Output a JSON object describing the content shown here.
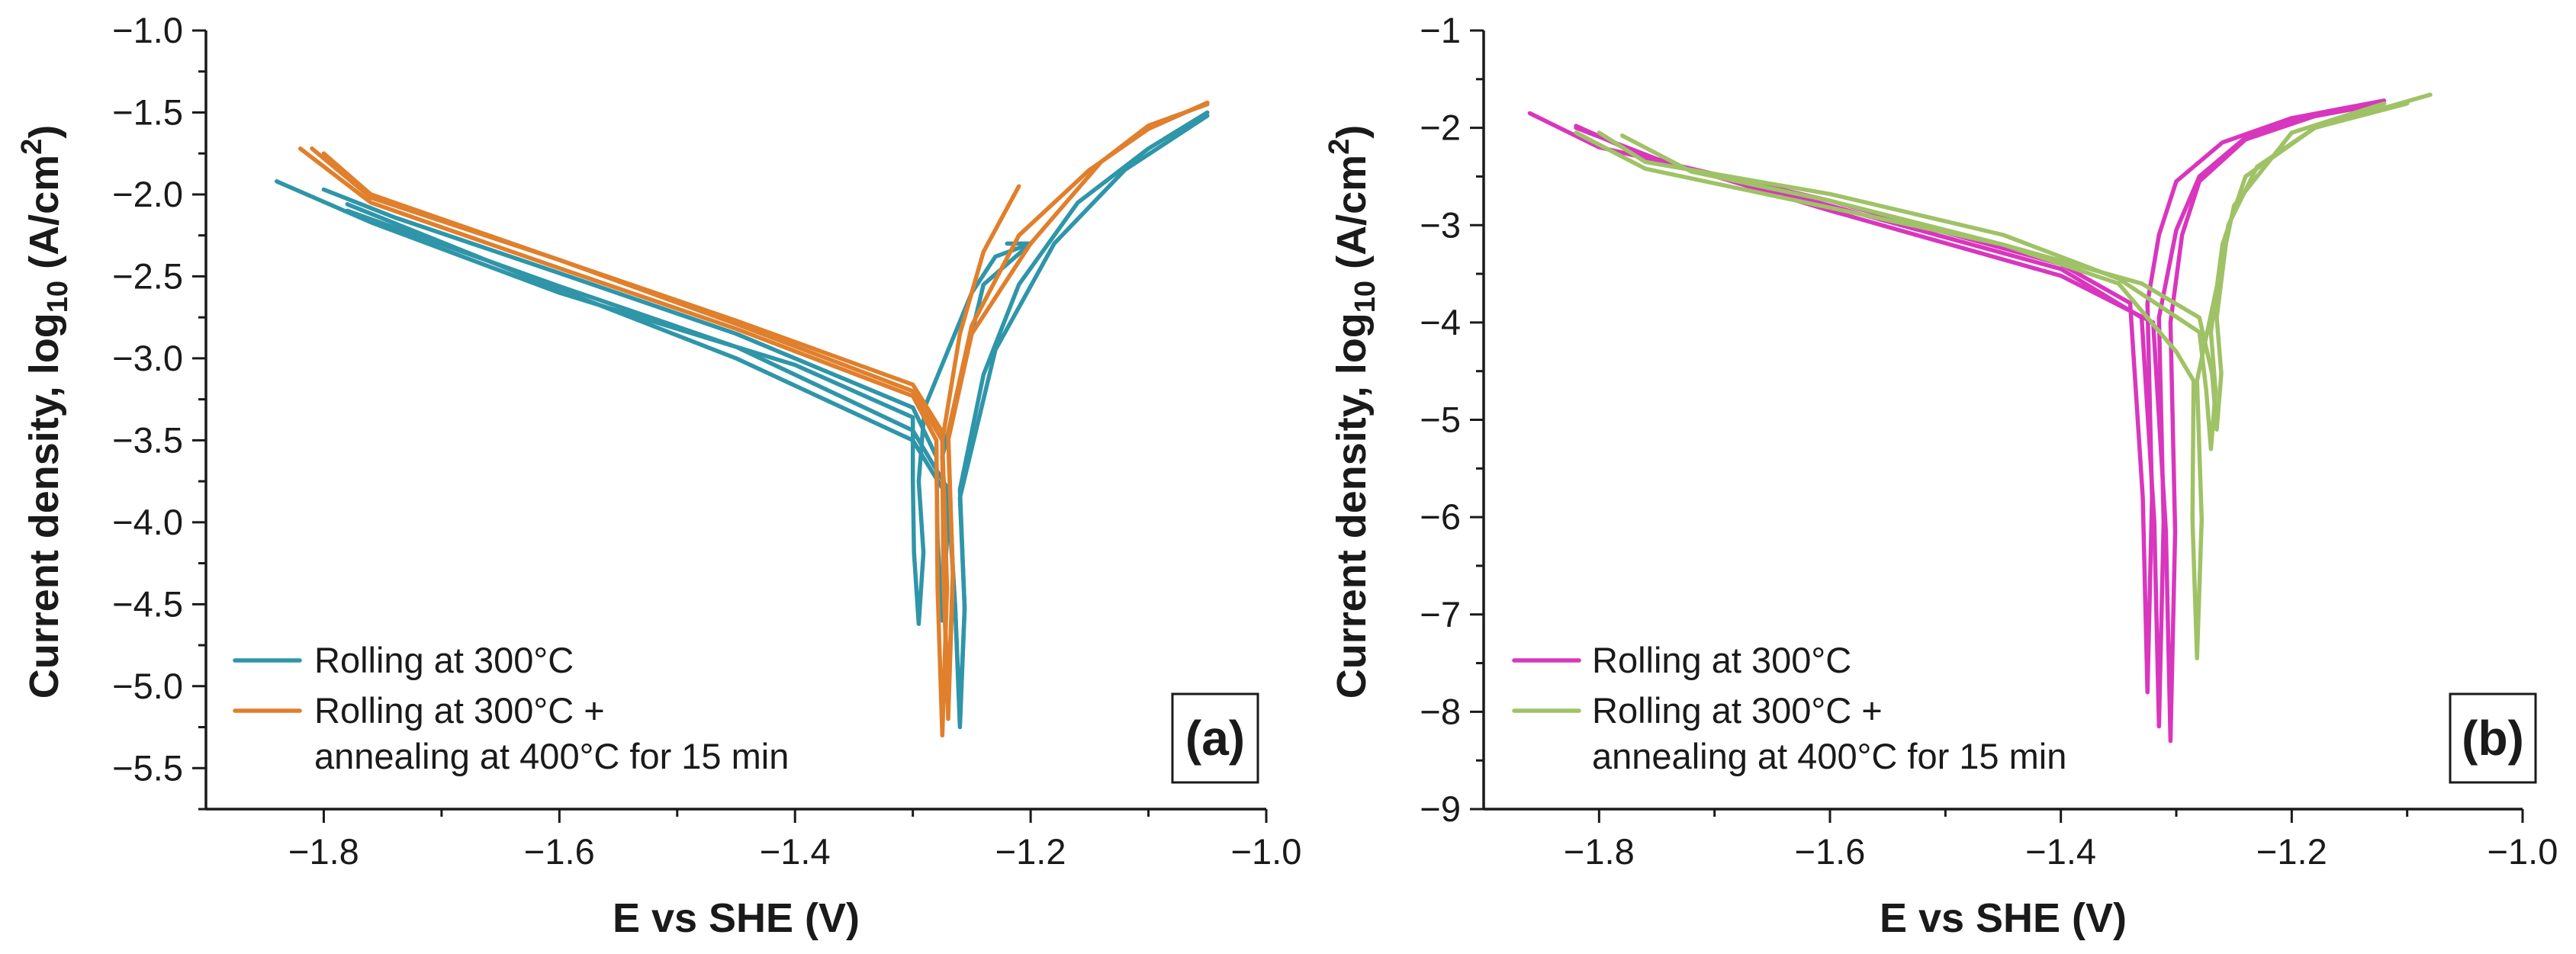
{
  "chart_data": [
    {
      "type": "line",
      "panel_label": "(a)",
      "xlabel": "E vs SHE (V)",
      "ylabel_parts": [
        "Current density, log",
        "10",
        " (A/cm",
        "2",
        ")"
      ],
      "xlim": [
        -1.9,
        -1.0
      ],
      "ylim": [
        -5.75,
        -1.0
      ],
      "xticks": [
        -1.8,
        -1.6,
        -1.4,
        -1.2,
        -1.0
      ],
      "xtick_labels": [
        "−1.8",
        "−1.6",
        "−1.4",
        "−1.2",
        "−1.0"
      ],
      "yticks": [
        -1.0,
        -1.5,
        -2.0,
        -2.5,
        -3.0,
        -3.5,
        -4.0,
        -4.5,
        -5.0,
        -5.5
      ],
      "ytick_labels": [
        "−1.0",
        "−1.5",
        "−2.0",
        "−2.5",
        "−3.0",
        "−3.5",
        "−4.0",
        "−4.5",
        "−5.0",
        "−5.5"
      ],
      "legend_position": "bottom-left",
      "legend": [
        {
          "lines": [
            "Rolling at 300°C"
          ],
          "color": "#2f95a9"
        },
        {
          "lines": [
            "Rolling at 300°C +",
            "annealing at 400°C for 15 min"
          ],
          "color": "#e07f2c"
        }
      ],
      "series": [
        {
          "name": "Rolling at 300°C",
          "color": "#2f95a9",
          "curves": [
            {
              "cathodic": [
                [
                  -1.84,
                  -1.92
                ],
                [
                  -1.76,
                  -2.17
                ],
                [
                  -1.6,
                  -2.6
                ],
                [
                  -1.4,
                  -3.04
                ],
                [
                  -1.3,
                  -3.36
                ],
                [
                  -1.3,
                  -3.75
                ]
              ],
              "ecorr": -1.295,
              "min": -4.62,
              "anodic": [
                [
                  -1.295,
                  -3.75
                ],
                [
                  -1.29,
                  -3.3
                ],
                [
                  -1.27,
                  -2.95
                ],
                [
                  -1.25,
                  -2.6
                ],
                [
                  -1.23,
                  -2.38
                ],
                [
                  -1.2,
                  -2.3
                ]
              ]
            },
            {
              "cathodic": [
                [
                  -1.8,
                  -1.97
                ],
                [
                  -1.74,
                  -2.14
                ],
                [
                  -1.6,
                  -2.48
                ],
                [
                  -1.45,
                  -2.85
                ],
                [
                  -1.3,
                  -3.3
                ],
                [
                  -1.28,
                  -3.6
                ]
              ],
              "ecorr": -1.275,
              "min": -4.6,
              "anodic": [
                [
                  -1.275,
                  -3.6
                ],
                [
                  -1.26,
                  -3.15
                ],
                [
                  -1.24,
                  -2.55
                ],
                [
                  -1.2,
                  -2.3
                ],
                [
                  -1.22,
                  -2.3
                ]
              ]
            },
            {
              "cathodic": [
                [
                  -1.78,
                  -2.1
                ],
                [
                  -1.6,
                  -2.56
                ],
                [
                  -1.45,
                  -2.93
                ],
                [
                  -1.3,
                  -3.44
                ],
                [
                  -1.27,
                  -3.8
                ]
              ],
              "ecorr": -1.26,
              "min": -5.25,
              "anodic": [
                [
                  -1.26,
                  -3.8
                ],
                [
                  -1.24,
                  -3.1
                ],
                [
                  -1.21,
                  -2.55
                ],
                [
                  -1.16,
                  -2.05
                ],
                [
                  -1.1,
                  -1.72
                ],
                [
                  -1.05,
                  -1.5
                ]
              ]
            },
            {
              "cathodic": [
                [
                  -1.78,
                  -2.06
                ],
                [
                  -1.6,
                  -2.58
                ],
                [
                  -1.45,
                  -3.0
                ],
                [
                  -1.3,
                  -3.5
                ],
                [
                  -1.27,
                  -3.85
                ]
              ],
              "ecorr": -1.26,
              "min": -5.2,
              "anodic": [
                [
                  -1.26,
                  -3.85
                ],
                [
                  -1.23,
                  -2.95
                ],
                [
                  -1.18,
                  -2.3
                ],
                [
                  -1.12,
                  -1.85
                ],
                [
                  -1.05,
                  -1.52
                ]
              ]
            }
          ]
        },
        {
          "name": "Rolling at 300°C +",
          "color": "#e07f2c",
          "curves": [
            {
              "cathodic": [
                [
                  -1.82,
                  -1.72
                ],
                [
                  -1.76,
                  -2.05
                ],
                [
                  -1.6,
                  -2.45
                ],
                [
                  -1.45,
                  -2.82
                ],
                [
                  -1.3,
                  -3.23
                ],
                [
                  -1.28,
                  -3.5
                ]
              ],
              "ecorr": -1.275,
              "min": -5.3,
              "anodic": [
                [
                  -1.275,
                  -3.5
                ],
                [
                  -1.26,
                  -2.85
                ],
                [
                  -1.24,
                  -2.35
                ],
                [
                  -1.21,
                  -1.95
                ]
              ]
            },
            {
              "cathodic": [
                [
                  -1.81,
                  -1.72
                ],
                [
                  -1.76,
                  -2.02
                ],
                [
                  -1.6,
                  -2.4
                ],
                [
                  -1.45,
                  -2.77
                ],
                [
                  -1.3,
                  -3.16
                ],
                [
                  -1.275,
                  -3.45
                ]
              ],
              "ecorr": -1.27,
              "min": -5.2,
              "anodic": [
                [
                  -1.27,
                  -3.45
                ],
                [
                  -1.25,
                  -2.8
                ],
                [
                  -1.21,
                  -2.25
                ],
                [
                  -1.15,
                  -1.85
                ],
                [
                  -1.1,
                  -1.6
                ],
                [
                  -1.05,
                  -1.44
                ]
              ]
            },
            {
              "cathodic": [
                [
                  -1.8,
                  -1.75
                ],
                [
                  -1.76,
                  -2.0
                ],
                [
                  -1.6,
                  -2.4
                ],
                [
                  -1.45,
                  -2.79
                ],
                [
                  -1.3,
                  -3.2
                ],
                [
                  -1.275,
                  -3.5
                ]
              ],
              "ecorr": -1.27,
              "min": -5.1,
              "anodic": [
                [
                  -1.27,
                  -3.5
                ],
                [
                  -1.25,
                  -2.85
                ],
                [
                  -1.2,
                  -2.3
                ],
                [
                  -1.14,
                  -1.8
                ],
                [
                  -1.1,
                  -1.58
                ],
                [
                  -1.05,
                  -1.45
                ]
              ]
            }
          ]
        }
      ]
    },
    {
      "type": "line",
      "panel_label": "(b)",
      "xlabel": "E vs SHE (V)",
      "ylabel_parts": [
        "Current density, log",
        "10",
        " (A/cm",
        "2",
        ")"
      ],
      "xlim": [
        -1.9,
        -1.0
      ],
      "ylim": [
        -9,
        -1
      ],
      "xticks": [
        -1.8,
        -1.6,
        -1.4,
        -1.2,
        -1.0
      ],
      "xtick_labels": [
        "−1.8",
        "−1.6",
        "−1.4",
        "−1.2",
        "−1.0"
      ],
      "yticks": [
        -1,
        -2,
        -3,
        -4,
        -5,
        -6,
        -7,
        -8,
        -9
      ],
      "ytick_labels": [
        "−1",
        "−2",
        "−3",
        "−4",
        "−5",
        "−6",
        "−7",
        "−8",
        "−9"
      ],
      "legend_position": "bottom-left",
      "legend": [
        {
          "lines": [
            "Rolling at 300°C"
          ],
          "color": "#d936be"
        },
        {
          "lines": [
            "Rolling at 300°C +",
            "annealing at 400°C for 15 min"
          ],
          "color": "#9fc266"
        }
      ],
      "series": [
        {
          "name": "Rolling at 300°C",
          "color": "#d936be",
          "curves": [
            {
              "cathodic": [
                [
                  -1.86,
                  -1.85
                ],
                [
                  -1.8,
                  -2.2
                ],
                [
                  -1.6,
                  -2.75
                ],
                [
                  -1.4,
                  -3.4
                ],
                [
                  -1.34,
                  -3.8
                ]
              ],
              "ecorr": -1.325,
              "min": -7.8,
              "anodic": [
                [
                  -1.325,
                  -3.8
                ],
                [
                  -1.315,
                  -3.1
                ],
                [
                  -1.3,
                  -2.55
                ],
                [
                  -1.26,
                  -2.15
                ],
                [
                  -1.2,
                  -1.9
                ],
                [
                  -1.12,
                  -1.72
                ]
              ]
            },
            {
              "cathodic": [
                [
                  -1.82,
                  -1.98
                ],
                [
                  -1.76,
                  -2.3
                ],
                [
                  -1.6,
                  -2.8
                ],
                [
                  -1.4,
                  -3.45
                ],
                [
                  -1.33,
                  -3.95
                ]
              ],
              "ecorr": -1.315,
              "min": -8.15,
              "anodic": [
                [
                  -1.315,
                  -3.95
                ],
                [
                  -1.3,
                  -3.05
                ],
                [
                  -1.28,
                  -2.5
                ],
                [
                  -1.24,
                  -2.1
                ],
                [
                  -1.2,
                  -1.92
                ],
                [
                  -1.12,
                  -1.75
                ]
              ]
            },
            {
              "cathodic": [
                [
                  -1.82,
                  -2.0
                ],
                [
                  -1.75,
                  -2.32
                ],
                [
                  -1.6,
                  -2.85
                ],
                [
                  -1.4,
                  -3.52
                ],
                [
                  -1.32,
                  -4.0
                ]
              ],
              "ecorr": -1.305,
              "min": -8.3,
              "anodic": [
                [
                  -1.305,
                  -4.0
                ],
                [
                  -1.295,
                  -3.1
                ],
                [
                  -1.28,
                  -2.55
                ],
                [
                  -1.24,
                  -2.12
                ],
                [
                  -1.18,
                  -1.88
                ],
                [
                  -1.12,
                  -1.75
                ]
              ]
            }
          ]
        },
        {
          "name": "Rolling at 300°C +",
          "color": "#9fc266",
          "curves": [
            {
              "cathodic": [
                [
                  -1.82,
                  -2.05
                ],
                [
                  -1.76,
                  -2.42
                ],
                [
                  -1.6,
                  -2.82
                ],
                [
                  -1.45,
                  -3.2
                ],
                [
                  -1.35,
                  -3.6
                ],
                [
                  -1.3,
                  -4.3
                ],
                [
                  -1.285,
                  -4.6
                ]
              ],
              "ecorr": -1.282,
              "min": -7.45,
              "anodic": [
                [
                  -1.282,
                  -4.6
                ],
                [
                  -1.275,
                  -4.2
                ],
                [
                  -1.25,
                  -2.8
                ],
                [
                  -1.2,
                  -2.05
                ],
                [
                  -1.12,
                  -1.75
                ]
              ]
            },
            {
              "cathodic": [
                [
                  -1.8,
                  -2.05
                ],
                [
                  -1.76,
                  -2.35
                ],
                [
                  -1.6,
                  -2.68
                ],
                [
                  -1.45,
                  -3.1
                ],
                [
                  -1.35,
                  -3.55
                ],
                [
                  -1.28,
                  -4.1
                ]
              ],
              "ecorr": -1.27,
              "min": -5.3,
              "anodic": [
                [
                  -1.27,
                  -4.1
                ],
                [
                  -1.26,
                  -3.2
                ],
                [
                  -1.24,
                  -2.5
                ],
                [
                  -1.18,
                  -2.0
                ],
                [
                  -1.1,
                  -1.75
                ]
              ]
            },
            {
              "cathodic": [
                [
                  -1.78,
                  -2.08
                ],
                [
                  -1.72,
                  -2.45
                ],
                [
                  -1.6,
                  -2.75
                ],
                [
                  -1.45,
                  -3.2
                ],
                [
                  -1.33,
                  -3.6
                ],
                [
                  -1.28,
                  -3.95
                ]
              ],
              "ecorr": -1.265,
              "min": -5.1,
              "anodic": [
                [
                  -1.265,
                  -3.95
                ],
                [
                  -1.255,
                  -3.0
                ],
                [
                  -1.23,
                  -2.4
                ],
                [
                  -1.18,
                  -2.0
                ],
                [
                  -1.08,
                  -1.66
                ]
              ]
            }
          ]
        }
      ]
    }
  ]
}
